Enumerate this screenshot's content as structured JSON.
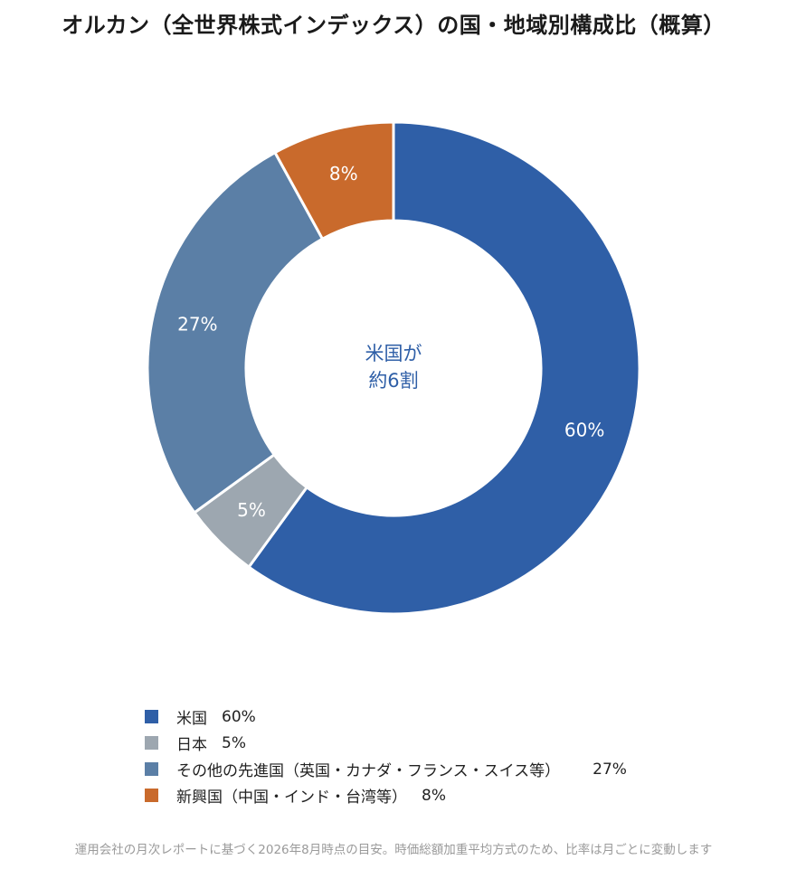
{
  "chart_data": {
    "type": "pie",
    "title": "オルカン（全世界株式インデックス）の国・地域別構成比（概算）",
    "categories": [
      "米国",
      "日本",
      "その他の先進国（英国・カナダ・フランス・スイス等）",
      "新興国（中国・インド・台湾等）"
    ],
    "values": [
      60,
      5,
      27,
      8
    ],
    "labels": [
      "60%",
      "5%",
      "27%",
      "8%"
    ],
    "colors": [
      "#2f5fa7",
      "#9da7b0",
      "#5b7fa6",
      "#c96a2c"
    ],
    "center_text": [
      "米国が",
      "約6割"
    ],
    "center_text_color": "#2f5fa7",
    "legend_placement": "bottom-left",
    "footnote": "運用会社の月次レポートに基づく2026年8月時点の目安。時価総額加重平均方式のため、比率は月ごとに変動します"
  }
}
